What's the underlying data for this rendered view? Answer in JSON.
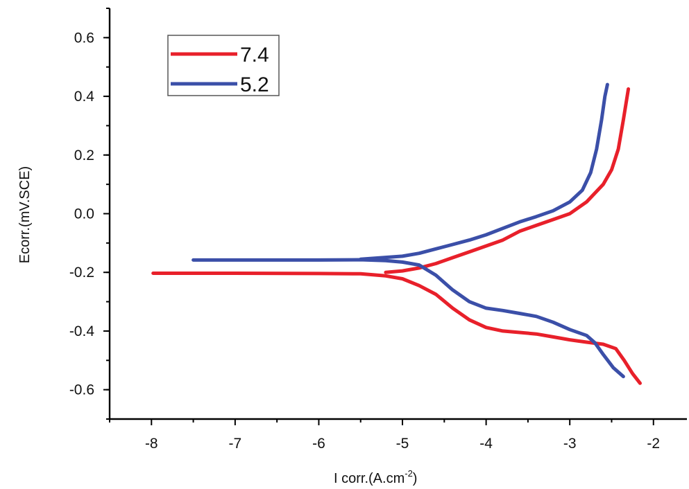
{
  "chart_data": {
    "type": "line",
    "xlabel": "I corr.(A.cm",
    "xlabel_sup": "-2",
    "xlabel_end": ")",
    "ylabel": "Ecorr.(mV.SCE)",
    "xlim": [
      -8.5,
      -1.6
    ],
    "ylim": [
      -0.7,
      0.7
    ],
    "xticks": [
      -8,
      -7,
      -6,
      -5,
      -4,
      -3,
      -2
    ],
    "xtick_labels": [
      "-8",
      "-7",
      "-6",
      "-5",
      "-4",
      "-3",
      "-2"
    ],
    "yticks": [
      -0.6,
      -0.4,
      -0.2,
      0.0,
      0.2,
      0.4,
      0.6
    ],
    "ytick_labels": [
      "-0.6",
      "-0.4",
      "-0.2",
      "0.0",
      "0.2",
      "0.4",
      "0.6"
    ],
    "grid": false,
    "legend_position": "top-left",
    "series": [
      {
        "name": "7.4",
        "color": "#e8202a",
        "points": [
          [
            -7.98,
            -0.203
          ],
          [
            -7.0,
            -0.203
          ],
          [
            -6.0,
            -0.204
          ],
          [
            -5.5,
            -0.205
          ],
          [
            -5.2,
            -0.212
          ],
          [
            -5.0,
            -0.222
          ],
          [
            -4.8,
            -0.245
          ],
          [
            -4.6,
            -0.275
          ],
          [
            -4.4,
            -0.322
          ],
          [
            -4.2,
            -0.362
          ],
          [
            -4.0,
            -0.388
          ],
          [
            -3.8,
            -0.4
          ],
          [
            -3.6,
            -0.405
          ],
          [
            -3.4,
            -0.41
          ],
          [
            -3.2,
            -0.42
          ],
          [
            -3.0,
            -0.43
          ],
          [
            -2.8,
            -0.438
          ],
          [
            -2.6,
            -0.445
          ],
          [
            -2.45,
            -0.46
          ],
          [
            -2.35,
            -0.5
          ],
          [
            -2.25,
            -0.545
          ],
          [
            -2.16,
            -0.578
          ]
        ]
      },
      {
        "name": "7.4",
        "color": "#e8202a",
        "points": [
          [
            -5.2,
            -0.2
          ],
          [
            -5.0,
            -0.195
          ],
          [
            -4.8,
            -0.185
          ],
          [
            -4.6,
            -0.17
          ],
          [
            -4.4,
            -0.15
          ],
          [
            -4.2,
            -0.13
          ],
          [
            -4.0,
            -0.11
          ],
          [
            -3.8,
            -0.09
          ],
          [
            -3.6,
            -0.06
          ],
          [
            -3.4,
            -0.04
          ],
          [
            -3.2,
            -0.02
          ],
          [
            -3.0,
            0.0
          ],
          [
            -2.8,
            0.04
          ],
          [
            -2.6,
            0.1
          ],
          [
            -2.5,
            0.15
          ],
          [
            -2.42,
            0.22
          ],
          [
            -2.36,
            0.32
          ],
          [
            -2.3,
            0.425
          ]
        ]
      },
      {
        "name": "5.2",
        "color": "#3b4fa8",
        "points": [
          [
            -7.5,
            -0.158
          ],
          [
            -7.0,
            -0.158
          ],
          [
            -6.0,
            -0.158
          ],
          [
            -5.5,
            -0.157
          ],
          [
            -5.2,
            -0.16
          ],
          [
            -5.0,
            -0.165
          ],
          [
            -4.8,
            -0.175
          ],
          [
            -4.6,
            -0.21
          ],
          [
            -4.4,
            -0.26
          ],
          [
            -4.2,
            -0.3
          ],
          [
            -4.0,
            -0.322
          ],
          [
            -3.8,
            -0.33
          ],
          [
            -3.6,
            -0.34
          ],
          [
            -3.4,
            -0.35
          ],
          [
            -3.2,
            -0.37
          ],
          [
            -3.0,
            -0.395
          ],
          [
            -2.8,
            -0.415
          ],
          [
            -2.7,
            -0.44
          ],
          [
            -2.6,
            -0.48
          ],
          [
            -2.48,
            -0.525
          ],
          [
            -2.36,
            -0.555
          ]
        ]
      },
      {
        "name": "5.2",
        "color": "#3b4fa8",
        "points": [
          [
            -5.5,
            -0.155
          ],
          [
            -5.0,
            -0.145
          ],
          [
            -4.8,
            -0.135
          ],
          [
            -4.6,
            -0.12
          ],
          [
            -4.4,
            -0.105
          ],
          [
            -4.2,
            -0.09
          ],
          [
            -4.0,
            -0.072
          ],
          [
            -3.8,
            -0.05
          ],
          [
            -3.6,
            -0.028
          ],
          [
            -3.4,
            -0.01
          ],
          [
            -3.2,
            0.01
          ],
          [
            -3.0,
            0.04
          ],
          [
            -2.85,
            0.08
          ],
          [
            -2.75,
            0.14
          ],
          [
            -2.68,
            0.22
          ],
          [
            -2.62,
            0.32
          ],
          [
            -2.58,
            0.4
          ],
          [
            -2.55,
            0.44
          ]
        ]
      }
    ],
    "legend": [
      {
        "label": "7.4",
        "color": "#e8202a"
      },
      {
        "label": "5.2",
        "color": "#3b4fa8"
      }
    ]
  }
}
